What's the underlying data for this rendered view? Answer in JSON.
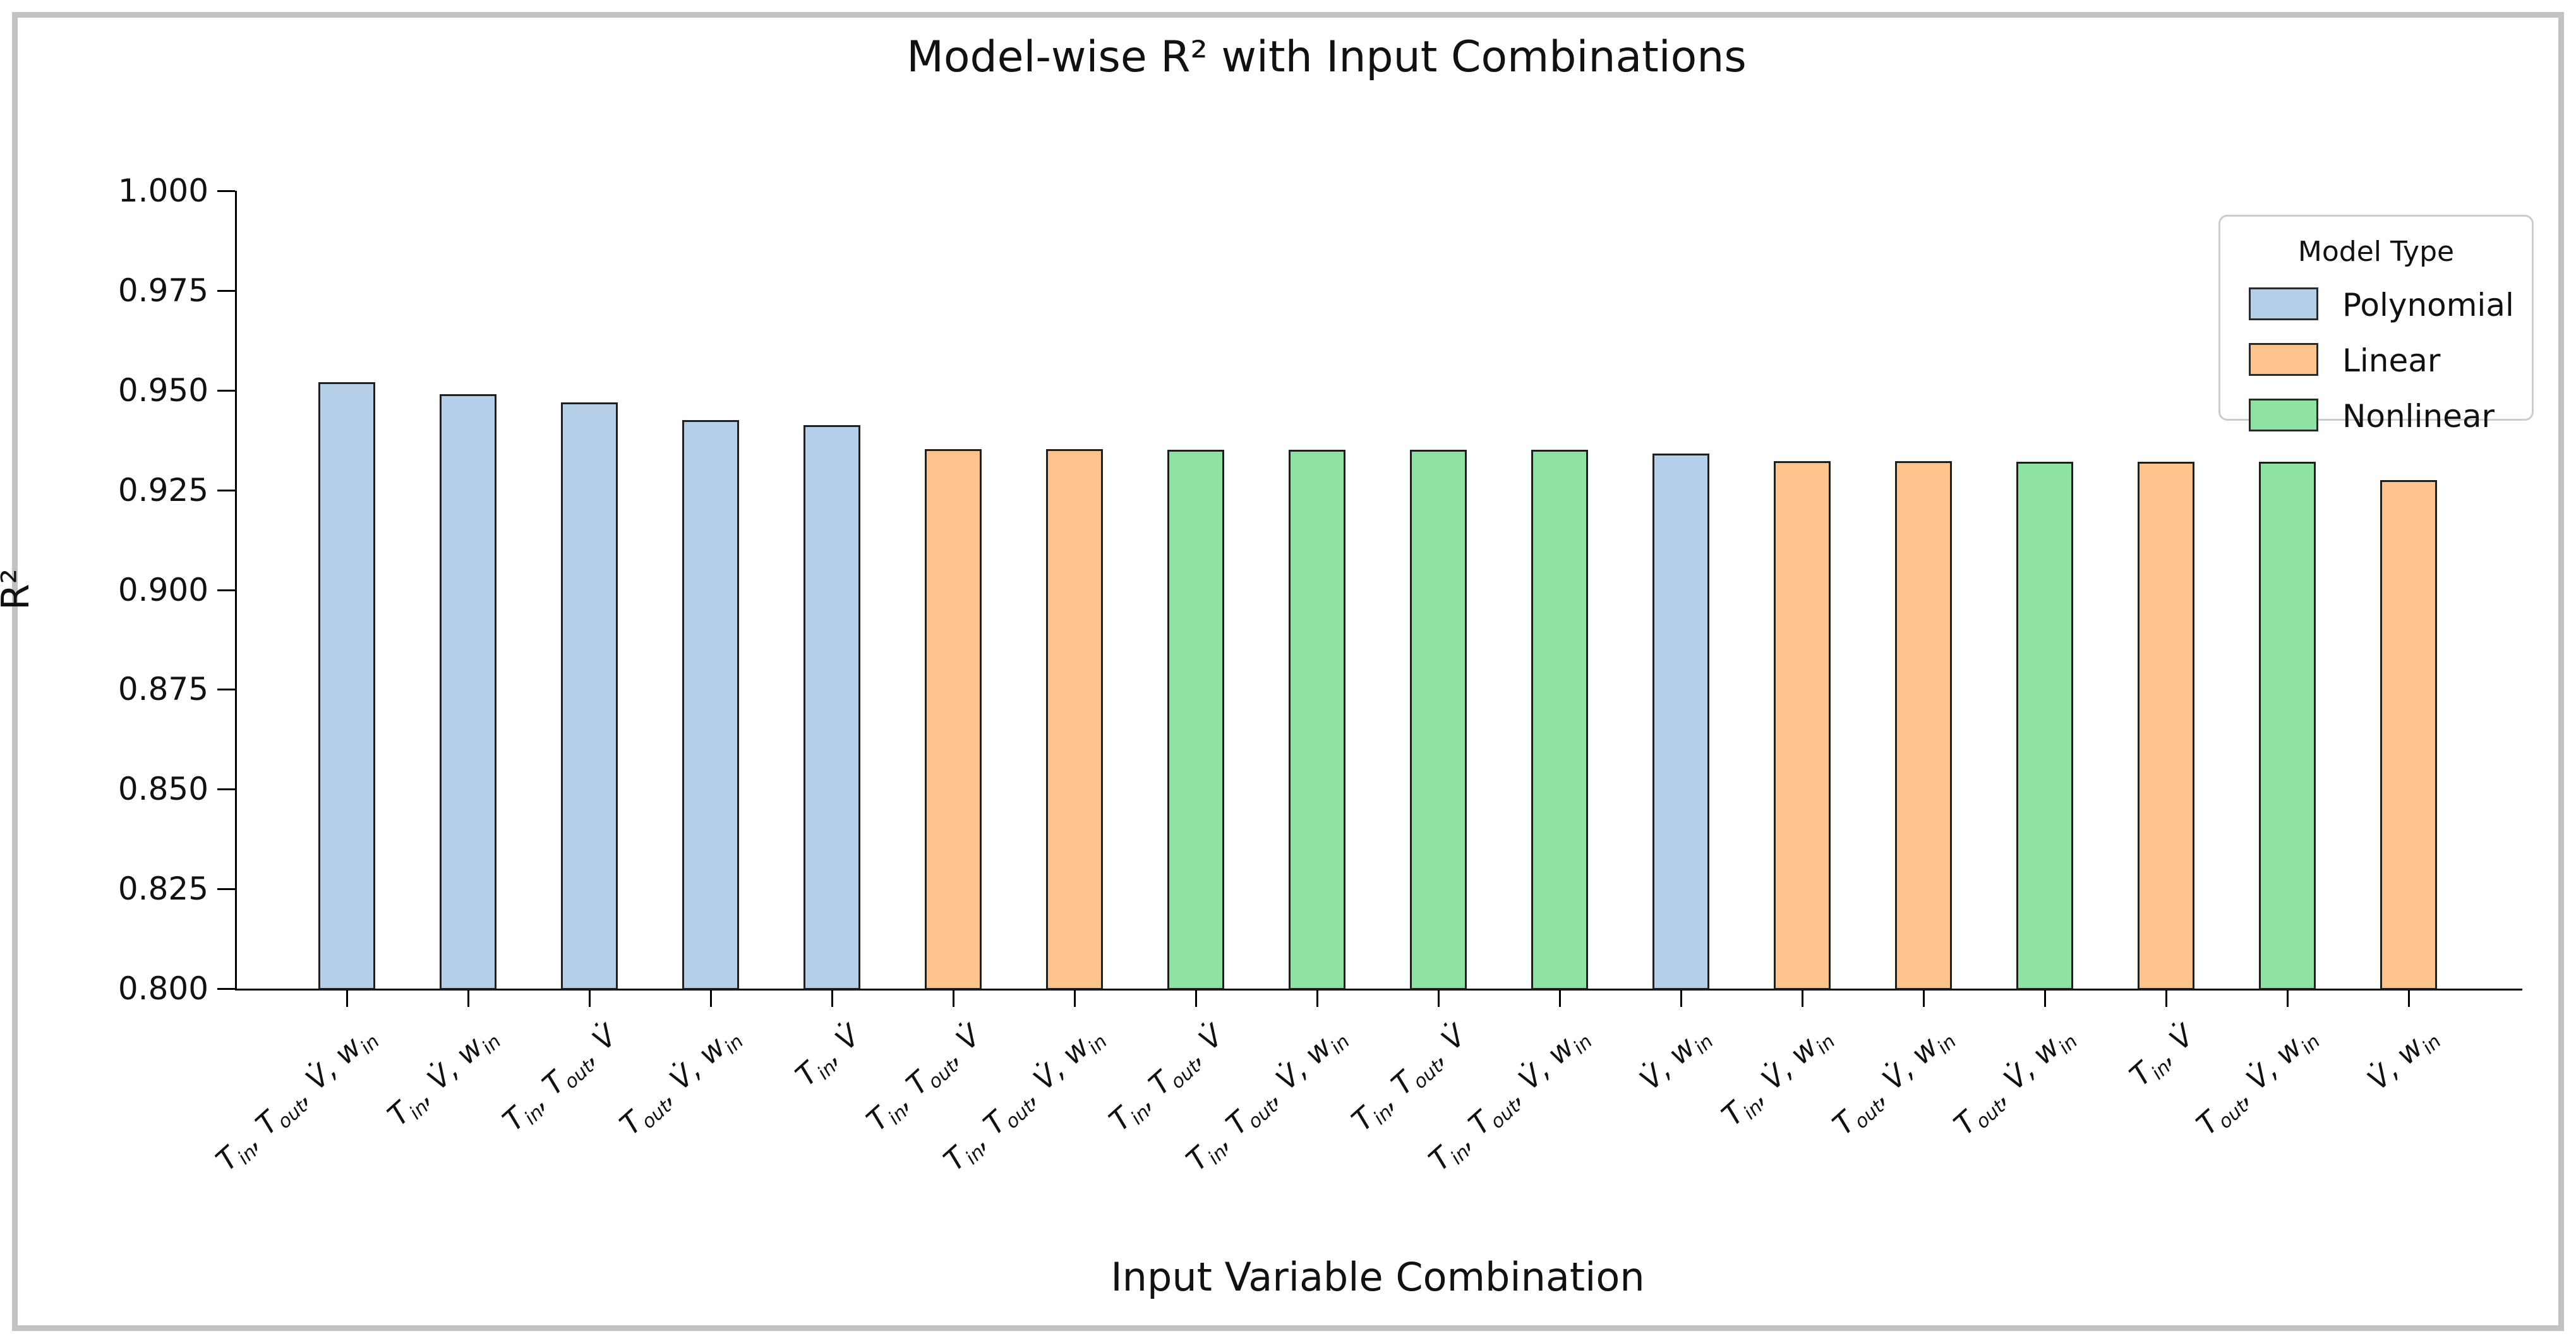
{
  "title": "Model-wise R² with Input Combinations",
  "x_axis_label": "Input Variable Combination",
  "y_axis_label": "R²",
  "legend": {
    "title": "Model Type",
    "entries": [
      {
        "label": "Polynomial",
        "color": "#b5cfe9"
      },
      {
        "label": "Linear",
        "color": "#fdc38d"
      },
      {
        "label": "Nonlinear",
        "color": "#8fe3a2"
      }
    ]
  },
  "colors": {
    "bar_edge": "#1f1f1f",
    "axis": "#000000",
    "frame_border": "#c2c2c2",
    "background": "#ffffff"
  },
  "chart_data": {
    "type": "bar",
    "title": "Model-wise R² with Input Combinations",
    "xlabel": "Input Variable Combination",
    "ylabel": "R²",
    "ylim": [
      0.8,
      1.0
    ],
    "ytick_labels": [
      "1.000",
      "0.975",
      "0.950",
      "0.925",
      "0.900",
      "0.875",
      "0.850",
      "0.825",
      "0.800"
    ],
    "grid": false,
    "legend_position": "upper right",
    "bars": [
      {
        "combination": "T_in, T_out, V̇, w_in",
        "model": "Polynomial",
        "r2": 0.952
      },
      {
        "combination": "T_in, V̇, w_in",
        "model": "Polynomial",
        "r2": 0.949
      },
      {
        "combination": "T_in, T_out, V̇",
        "model": "Polynomial",
        "r2": 0.947
      },
      {
        "combination": "T_out, V̇, w_in",
        "model": "Polynomial",
        "r2": 0.9425
      },
      {
        "combination": "T_in, V̇",
        "model": "Polynomial",
        "r2": 0.9413
      },
      {
        "combination": "T_in, T_out, V̇",
        "model": "Linear",
        "r2": 0.9352
      },
      {
        "combination": "T_in, T_out, V̇, w_in",
        "model": "Linear",
        "r2": 0.9352
      },
      {
        "combination": "T_in, T_out, V̇",
        "model": "Nonlinear",
        "r2": 0.935
      },
      {
        "combination": "T_in, T_out, V̇, w_in",
        "model": "Nonlinear",
        "r2": 0.935
      },
      {
        "combination": "T_in, T_out, V̇",
        "model": "Nonlinear",
        "r2": 0.935
      },
      {
        "combination": "T_in, T_out, V̇, w_in",
        "model": "Nonlinear",
        "r2": 0.935
      },
      {
        "combination": "V̇, w_in",
        "model": "Polynomial",
        "r2": 0.9341
      },
      {
        "combination": "T_in, V̇, w_in",
        "model": "Linear",
        "r2": 0.9323
      },
      {
        "combination": "T_out, V̇, w_in",
        "model": "Linear",
        "r2": 0.9322
      },
      {
        "combination": "T_out, V̇, w_in",
        "model": "Nonlinear",
        "r2": 0.9321
      },
      {
        "combination": "T_in, V̇",
        "model": "Linear",
        "r2": 0.932
      },
      {
        "combination": "T_out, V̇, w_in",
        "model": "Nonlinear",
        "r2": 0.932
      },
      {
        "combination": "V̇, w_in",
        "model": "Linear",
        "r2": 0.9275
      }
    ]
  }
}
